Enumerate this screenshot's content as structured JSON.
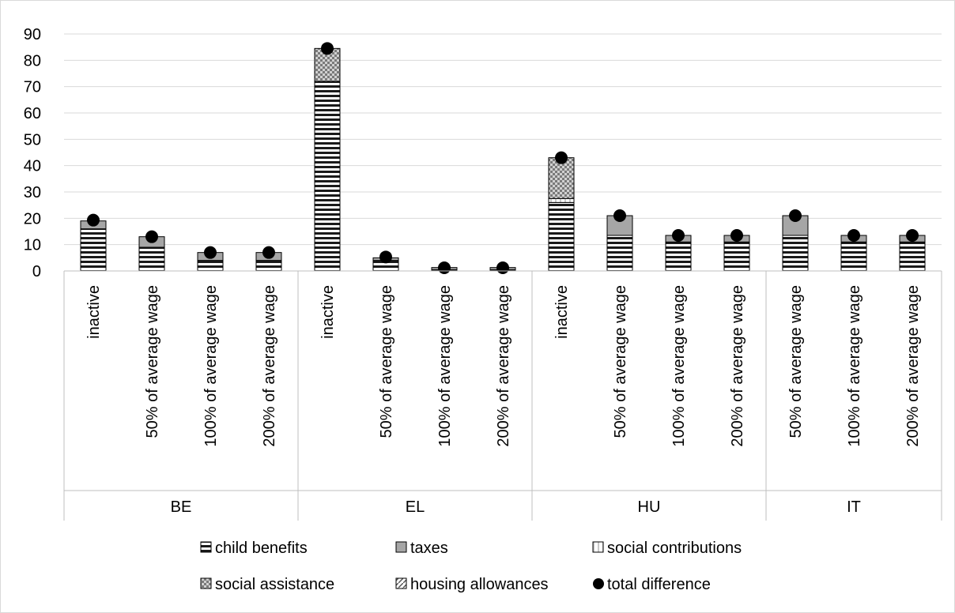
{
  "chart_data": {
    "type": "bar",
    "stacked": true,
    "title": "",
    "xlabel": "",
    "ylabel": "",
    "ylim": [
      0,
      90
    ],
    "yticks": [
      0,
      10,
      20,
      30,
      40,
      50,
      60,
      70,
      80,
      90
    ],
    "grid": true,
    "legend_position": "bottom",
    "groups": [
      {
        "label": "BE",
        "categories": [
          "inactive",
          "50% of average wage",
          "100% of average wage",
          "200% of average wage"
        ]
      },
      {
        "label": "EL",
        "categories": [
          "inactive",
          "50% of average wage",
          "100% of average wage",
          "200% of average wage"
        ]
      },
      {
        "label": "HU",
        "categories": [
          "inactive",
          "50% of average wage",
          "100% of average wage",
          "200% of average wage"
        ]
      },
      {
        "label": "IT",
        "categories": [
          "50% of average wage",
          "100% of average wage",
          "200% of average wage"
        ]
      }
    ],
    "series": [
      {
        "name": "child benefits",
        "pattern": "hlines",
        "values": [
          16,
          9,
          4,
          4,
          72,
          4,
          0.5,
          0.5,
          26,
          13.5,
          11,
          11,
          13.5,
          11,
          11
        ]
      },
      {
        "name": "taxes",
        "pattern": "gray",
        "values": [
          3,
          4,
          3,
          3,
          0,
          1,
          0.8,
          0.8,
          0,
          7.5,
          2.5,
          2.5,
          7.5,
          2.5,
          2.5
        ]
      },
      {
        "name": "social contributions",
        "pattern": "vlines",
        "values": [
          0,
          0,
          0,
          0,
          0,
          0,
          0,
          0,
          1.5,
          0,
          0,
          0,
          0,
          0,
          0
        ]
      },
      {
        "name": "social assistance",
        "pattern": "checker",
        "values": [
          0,
          0,
          0,
          0,
          12.5,
          0,
          0,
          0,
          15.5,
          0,
          0,
          0,
          0,
          0,
          0
        ]
      },
      {
        "name": "housing allowances",
        "pattern": "diag",
        "values": [
          0,
          0,
          0,
          0,
          0,
          0,
          0,
          0,
          0,
          0,
          0,
          0,
          0,
          0,
          0
        ]
      }
    ],
    "total_difference": {
      "name": "total difference",
      "values": [
        19.3,
        13,
        7,
        7,
        84.5,
        5.3,
        1.2,
        1.2,
        43,
        21,
        13.5,
        13.5,
        21,
        13.5,
        13.5
      ]
    }
  }
}
